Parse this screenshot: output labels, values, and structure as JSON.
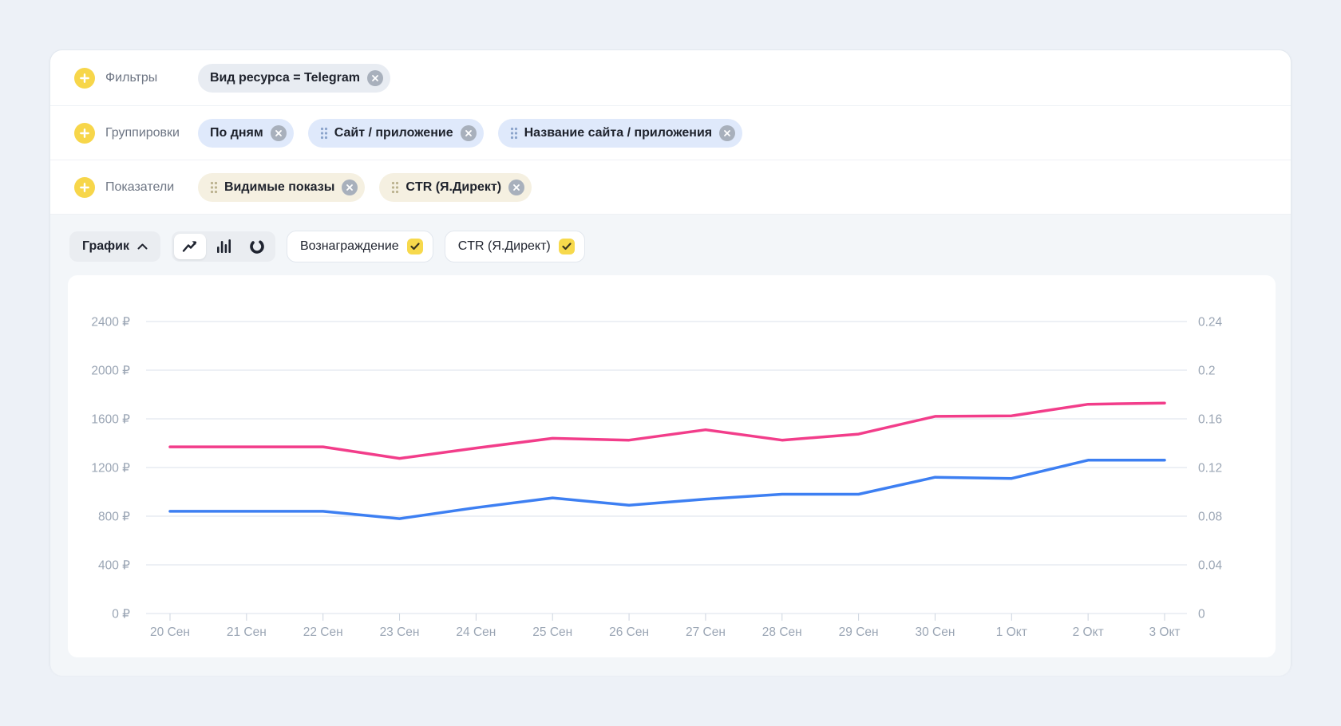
{
  "colors": {
    "accent_yellow": "#f7d64a",
    "reward_line": "#f23d8a",
    "ctr_line": "#3d7ff2",
    "page_bg": "#edf1f7"
  },
  "rows": [
    {
      "id": "filters",
      "label": "Фильтры",
      "chip_style": "gray",
      "chips": [
        {
          "text": "Вид ресурса = Telegram",
          "handle": false
        }
      ]
    },
    {
      "id": "groupings",
      "label": "Группировки",
      "chip_style": "blue",
      "chips": [
        {
          "text": "По дням",
          "handle": false
        },
        {
          "text": "Сайт / приложение",
          "handle": true
        },
        {
          "text": "Название сайта / приложения",
          "handle": true
        }
      ]
    },
    {
      "id": "metrics",
      "label": "Показатели",
      "chip_style": "cream",
      "chips": [
        {
          "text": "Видимые показы",
          "handle": true
        },
        {
          "text": "CTR (Я.Директ)",
          "handle": true
        }
      ]
    }
  ],
  "controls": {
    "chart_section_label": "График",
    "chart_types": [
      "line",
      "bars",
      "pie"
    ],
    "selected_chart_type": "line",
    "selectors": [
      {
        "label": "Вознаграждение"
      },
      {
        "label": "CTR (Я.Директ)"
      }
    ]
  },
  "chart_data": {
    "type": "line",
    "grid": true,
    "legend_position": "none",
    "categories": [
      "20 Сен",
      "21 Сен",
      "22 Сен",
      "23 Сен",
      "24 Сен",
      "25 Сен",
      "26 Сен",
      "27 Сен",
      "28 Сен",
      "29 Сен",
      "30 Сен",
      "1 Окт",
      "2 Окт",
      "3 Окт"
    ],
    "series": [
      {
        "name": "Вознаграждение",
        "axis": "left",
        "color": "#f23d8a",
        "values": [
          1370,
          1370,
          1370,
          1275,
          1360,
          1440,
          1425,
          1510,
          1425,
          1475,
          1620,
          1625,
          1720,
          1730
        ]
      },
      {
        "name": "CTR (Я.Директ)",
        "axis": "right",
        "color": "#3d7ff2",
        "values": [
          0.084,
          0.084,
          0.084,
          0.078,
          0.087,
          0.095,
          0.089,
          0.094,
          0.098,
          0.098,
          0.112,
          0.111,
          0.126,
          0.126
        ]
      }
    ],
    "left_axis": {
      "title": "Вознаграждение",
      "min": 0,
      "max": 2400,
      "ticks": [
        "0 ₽",
        "400 ₽",
        "800 ₽",
        "1200 ₽",
        "1600 ₽",
        "2000 ₽",
        "2400 ₽"
      ]
    },
    "right_axis": {
      "title": "CTR (Я.Директ)",
      "min": 0,
      "max": 0.24,
      "ticks": [
        "0",
        "0.04",
        "0.08",
        "0.12",
        "0.16",
        "0.2",
        "0.24"
      ]
    }
  }
}
